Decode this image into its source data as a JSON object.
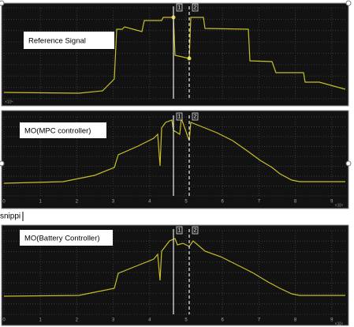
{
  "panels": [
    {
      "label": "Reference Signal",
      "cursor1": "1",
      "cursor2": "2",
      "exponent": "×10⁴"
    },
    {
      "label": "MO(MPC controller)",
      "cursor1": "1",
      "cursor2": "2",
      "exponent": "×10⁴",
      "ticks": [
        "0",
        "1",
        "2",
        "3",
        "4",
        "5",
        "6",
        "7",
        "8",
        "9"
      ]
    },
    {
      "label": "MO(Battery Controller)",
      "cursor1": "1",
      "cursor2": "2",
      "exponent": "×10⁴",
      "ticks": [
        "0",
        "1",
        "2",
        "3",
        "4",
        "5",
        "6",
        "7",
        "8",
        "9"
      ]
    }
  ],
  "snippet_text": "snippi"
}
